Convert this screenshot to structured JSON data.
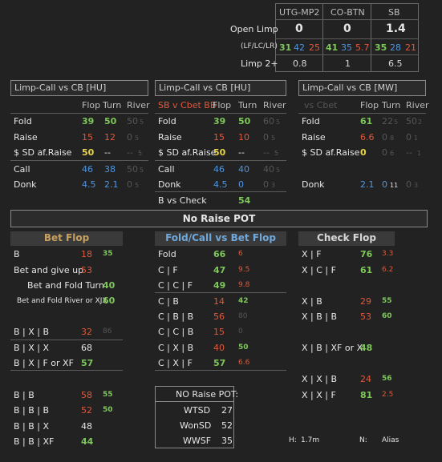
{
  "positions_table": {
    "headers": [
      "UTG-MP2",
      "CO-BTN",
      "SB"
    ],
    "open_limp_label": "Open Limp",
    "open_limp_values": [
      "0",
      "0",
      "1.4"
    ],
    "lflclr_label": "(LF/LC/LR)",
    "lflclr": [
      [
        "31",
        "42",
        "25"
      ],
      [
        "41",
        "35",
        "5.7"
      ],
      [
        "35",
        "28",
        "21"
      ]
    ],
    "limp2_label": "Limp 2+",
    "limp2_values": [
      "0.8",
      "1",
      "6.5"
    ]
  },
  "panel1": {
    "title": "Limp-Call  vs CB [HU]",
    "cols": [
      "Flop",
      "Turn",
      "River"
    ],
    "rows": [
      {
        "label": "Fold",
        "v": [
          "39",
          "50",
          "50"
        ],
        "s": "5"
      },
      {
        "label": "Raise",
        "v": [
          "15",
          "12",
          "0"
        ],
        "s": "5"
      },
      {
        "label": "$ SD af.Raise",
        "v": [
          "50",
          "--",
          "--"
        ],
        "s": "5"
      },
      {
        "label": "Call",
        "v": [
          "46",
          "38",
          "50"
        ],
        "s": "5"
      },
      {
        "label": "Donk",
        "v": [
          "4.5",
          "2.1",
          "0"
        ],
        "s": "5"
      }
    ]
  },
  "panel2": {
    "title": "Limp-Call  vs CB [HU]",
    "sub_label": "SB v Cbet BB",
    "cols": [
      "Flop",
      "Turn",
      "River"
    ],
    "rows": [
      {
        "label": "Fold",
        "v": [
          "39",
          "50",
          "60"
        ],
        "s": "5"
      },
      {
        "label": "Raise",
        "v": [
          "15",
          "10",
          "0"
        ],
        "s": "5"
      },
      {
        "label": "$ SD af.Raise",
        "v": [
          "50",
          "--",
          "--"
        ],
        "s": "5"
      },
      {
        "label": "Call",
        "v": [
          "46",
          "40",
          "40"
        ],
        "s": "5"
      },
      {
        "label": "Donk",
        "v": [
          "4.5",
          "0",
          "0"
        ],
        "s": "3"
      },
      {
        "label": "B vs Check",
        "v": [
          "54"
        ]
      }
    ]
  },
  "panel3": {
    "title": "Limp-Call  vs CB [MW]",
    "sub_label": "vs Cbet",
    "cols": [
      "Flop",
      "Turn",
      "River"
    ],
    "rows": [
      {
        "label": "Fold",
        "v": [
          "61",
          "22",
          "50"
        ],
        "s": [
          "5",
          "2"
        ]
      },
      {
        "label": "Raise",
        "v": [
          "6.6",
          "0",
          "0"
        ],
        "s": [
          "8",
          "1"
        ]
      },
      {
        "label": "$ SD af.Raise",
        "v": [
          "0",
          "0",
          "--"
        ],
        "s": [
          "6",
          "1"
        ]
      },
      {
        "label": "Donk",
        "v": [
          "2.1",
          "0",
          "0"
        ],
        "s": [
          "11",
          "3"
        ]
      }
    ]
  },
  "no_raise_pot": {
    "title": "No Raise POT",
    "bet_flop": {
      "title": "Bet Flop",
      "rows": [
        {
          "label": "B",
          "v": "18",
          "s": "35"
        },
        {
          "label": "Bet and give up",
          "v": "53"
        },
        {
          "label": "Bet and Fold Turn",
          "v": "40"
        },
        {
          "label": "Bet and Fold River or XJX",
          "v": "60"
        },
        {
          "label": "B | X | B",
          "v": "32",
          "s": "86"
        },
        {
          "label": "B | X | X",
          "v": "68"
        },
        {
          "label": "B | X | F or XF",
          "v": "57"
        },
        {
          "label": "B | B",
          "v": "58",
          "s": "55"
        },
        {
          "label": "B | B | B",
          "v": "52",
          "s": "50"
        },
        {
          "label": "B | B | X",
          "v": "48"
        },
        {
          "label": "B | B | XF",
          "v": "44"
        }
      ]
    },
    "fold_call": {
      "title": "Fold/Call vs Bet Flop",
      "rows": [
        {
          "label": "Fold",
          "v": "66",
          "s": "6"
        },
        {
          "label": "C | F",
          "v": "47",
          "s": "9.5"
        },
        {
          "label": "C | C | F",
          "v": "49",
          "s": "9.8"
        },
        {
          "label": "C | B",
          "v": "14",
          "s": "42"
        },
        {
          "label": "C | B | B",
          "v": "56",
          "s": "80"
        },
        {
          "label": "C | C | B",
          "v": "15",
          "s": "0"
        },
        {
          "label": "C | X | B",
          "v": "40",
          "s": "50"
        },
        {
          "label": "C | X | F",
          "v": "57",
          "s": "6.6"
        }
      ]
    },
    "check_flop": {
      "title": "Check  Flop",
      "rows": [
        {
          "label": "X | F",
          "v": "76",
          "s": "3.3"
        },
        {
          "label": "X | C | F",
          "v": "61",
          "s": "6.2"
        },
        {
          "label": "X | B",
          "v": "29",
          "s": "55"
        },
        {
          "label": "X | B | B",
          "v": "53",
          "s": "60"
        },
        {
          "label": "X | B |  XF or X",
          "v": "48"
        },
        {
          "label": "X | X | B",
          "v": "24",
          "s": "56"
        },
        {
          "label": "X | X | F",
          "v": "81",
          "s": "2.5"
        }
      ]
    },
    "summary": {
      "title": "NO Raise POT:",
      "rows": [
        {
          "label": "WTSD",
          "v": "27"
        },
        {
          "label": "WonSD",
          "v": "52"
        },
        {
          "label": "WWSF",
          "v": "35"
        }
      ]
    },
    "footer": {
      "h_label": "H:",
      "h_value": "1.7m",
      "n_label": "N:",
      "n_value": "Alias"
    }
  }
}
